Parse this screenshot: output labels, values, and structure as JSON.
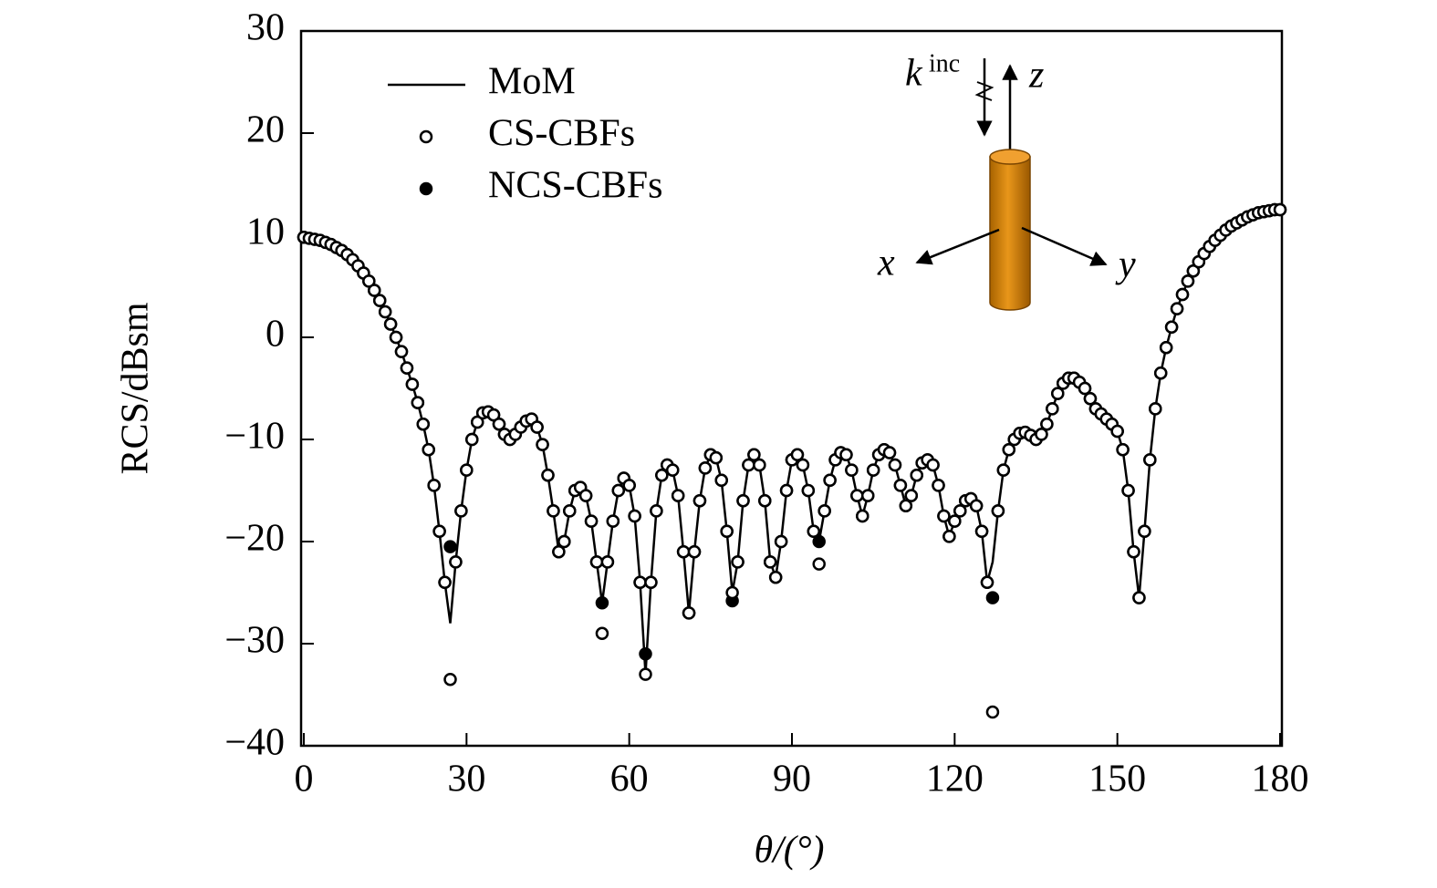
{
  "chart_data": {
    "type": "line",
    "xlabel": "θ/(°)",
    "ylabel": "RCS/dBsm",
    "xlim": [
      0,
      180
    ],
    "xticks": [
      0,
      30,
      60,
      90,
      120,
      150,
      180
    ],
    "ylim": [
      -40,
      30
    ],
    "yticks": [
      {
        "value": -40,
        "label": "−40"
      },
      {
        "value": -30,
        "label": "−30"
      },
      {
        "value": -20,
        "label": "−20"
      },
      {
        "value": -10,
        "label": "−10"
      },
      0,
      10,
      20,
      30
    ],
    "legend": "upper left",
    "annotations": [
      "k",
      "inc",
      "z",
      "x",
      "y"
    ],
    "x": [
      0,
      1,
      2,
      3,
      4,
      5,
      6,
      7,
      8,
      9,
      10,
      11,
      12,
      13,
      14,
      15,
      16,
      17,
      18,
      19,
      20,
      21,
      22,
      23,
      24,
      25,
      26,
      27,
      28,
      29,
      30,
      31,
      32,
      33,
      34,
      35,
      36,
      37,
      38,
      39,
      40,
      41,
      42,
      43,
      44,
      45,
      46,
      47,
      48,
      49,
      50,
      51,
      52,
      53,
      54,
      55,
      56,
      57,
      58,
      59,
      60,
      61,
      62,
      63,
      64,
      65,
      66,
      67,
      68,
      69,
      70,
      71,
      72,
      73,
      74,
      75,
      76,
      77,
      78,
      79,
      80,
      81,
      82,
      83,
      84,
      85,
      86,
      87,
      88,
      89,
      90,
      91,
      92,
      93,
      94,
      95,
      96,
      97,
      98,
      99,
      100,
      101,
      102,
      103,
      104,
      105,
      106,
      107,
      108,
      109,
      110,
      111,
      112,
      113,
      114,
      115,
      116,
      117,
      118,
      119,
      120,
      121,
      122,
      123,
      124,
      125,
      126,
      127,
      128,
      129,
      130,
      131,
      132,
      133,
      134,
      135,
      136,
      137,
      138,
      139,
      140,
      141,
      142,
      143,
      144,
      145,
      146,
      147,
      148,
      149,
      150,
      151,
      152,
      153,
      154,
      155,
      156,
      157,
      158,
      159,
      160,
      161,
      162,
      163,
      164,
      165,
      166,
      167,
      168,
      169,
      170,
      171,
      172,
      173,
      174,
      175,
      176,
      177,
      178,
      179,
      180
    ],
    "series": [
      {
        "name": "MoM",
        "color": "#000000",
        "marker": "line",
        "values": [
          9.8,
          9.7,
          9.6,
          9.5,
          9.3,
          9.1,
          8.8,
          8.5,
          8.1,
          7.6,
          7.0,
          6.3,
          5.5,
          4.6,
          3.6,
          2.5,
          1.3,
          0,
          -1.4,
          -3,
          -4.6,
          -6.4,
          -8.5,
          -11,
          -14.5,
          -19,
          -24,
          -28,
          -22,
          -17,
          -13,
          -10,
          -8.3,
          -7.4,
          -7.3,
          -7.6,
          -8.5,
          -9.5,
          -10,
          -9.5,
          -8.8,
          -8.2,
          -8,
          -8.8,
          -10.5,
          -13.5,
          -17,
          -21,
          -20,
          -17,
          -15,
          -14.7,
          -15.5,
          -18,
          -22,
          -26,
          -22,
          -18,
          -15,
          -13.8,
          -14.5,
          -17.5,
          -24,
          -33,
          -24,
          -17,
          -13.5,
          -12.5,
          -13,
          -15.5,
          -21,
          -27,
          -21,
          -16,
          -12.8,
          -11.5,
          -11.8,
          -14,
          -19,
          -25,
          -22,
          -16,
          -12.5,
          -11.5,
          -12.5,
          -16,
          -22,
          -23.5,
          -20,
          -15,
          -12,
          -11.5,
          -12.5,
          -15,
          -19,
          -20,
          -17,
          -14,
          -12,
          -11.3,
          -11.5,
          -13,
          -15.5,
          -17.5,
          -15.5,
          -13,
          -11.5,
          -11,
          -11.3,
          -12.5,
          -14.5,
          -16.5,
          -15.5,
          -13.5,
          -12.3,
          -12,
          -12.5,
          -14.5,
          -17.5,
          -19.5,
          -18,
          -17,
          -16,
          -15.8,
          -16.5,
          -19,
          -24,
          -22,
          -17,
          -13,
          -11,
          -10,
          -9.4,
          -9.3,
          -9.6,
          -10,
          -9.5,
          -8.5,
          -7,
          -5.5,
          -4.5,
          -4,
          -4,
          -4.4,
          -5,
          -6,
          -7,
          -7.5,
          -8,
          -8.5,
          -9.2,
          -11,
          -15,
          -21,
          -25.5,
          -19,
          -12,
          -7,
          -3.5,
          -1,
          1,
          2.8,
          4.2,
          5.5,
          6.5,
          7.4,
          8.2,
          8.9,
          9.5,
          10,
          10.5,
          10.9,
          11.2,
          11.5,
          11.8,
          12,
          12.2,
          12.3,
          12.4,
          12.5,
          12.5
        ]
      },
      {
        "name": "NCS-CBFs",
        "color": "#000000",
        "marker": "filled",
        "values": [
          9.8,
          9.7,
          9.6,
          9.5,
          9.3,
          9.1,
          8.8,
          8.5,
          8.1,
          7.6,
          7.0,
          6.3,
          5.5,
          4.6,
          3.6,
          2.5,
          1.3,
          0,
          -1.4,
          -3,
          -4.6,
          -6.4,
          -8.5,
          -11,
          -14.5,
          -19,
          -24,
          -20.5,
          -22,
          -17,
          -13,
          -10,
          -8.3,
          -7.4,
          -7.3,
          -7.6,
          -8.5,
          -9.5,
          -10,
          -9.5,
          -8.8,
          -8.2,
          -8,
          -8.8,
          -10.5,
          -13.5,
          -17,
          -21,
          -20,
          -17,
          -15,
          -14.7,
          -15.5,
          -18,
          -22,
          -26,
          -22,
          -18,
          -15,
          -13.8,
          -14.5,
          -17.5,
          -24,
          -31,
          -24,
          -17,
          -13.5,
          -12.5,
          -13,
          -15.5,
          -21,
          -27,
          -21,
          -16,
          -12.8,
          -11.5,
          -11.8,
          -14,
          -19,
          -25.8,
          -22,
          -16,
          -12.5,
          -11.5,
          -12.5,
          -16,
          -22,
          -23.5,
          -20,
          -15,
          -12,
          -11.5,
          -12.5,
          -15,
          -19,
          -20,
          -17,
          -14,
          -12,
          -11.3,
          -11.5,
          -13,
          -15.5,
          -17.5,
          -15.5,
          -13,
          -11.5,
          -11,
          -11.3,
          -12.5,
          -14.5,
          -16.5,
          -15.5,
          -13.5,
          -12.3,
          -12,
          -12.5,
          -14.5,
          -17.5,
          -19.5,
          -18,
          -17,
          -16,
          -15.8,
          -16.5,
          -19,
          -24,
          -25.5,
          -17,
          -13,
          -11,
          -10,
          -9.4,
          -9.3,
          -9.6,
          -10,
          -9.5,
          -8.5,
          -7,
          -5.5,
          -4.5,
          -4,
          -4,
          -4.4,
          -5,
          -6,
          -7,
          -7.5,
          -8,
          -8.5,
          -9.2,
          -11,
          -15,
          -21,
          -25.5,
          -19,
          -12,
          -7,
          -3.5,
          -1,
          1,
          2.8,
          4.2,
          5.5,
          6.5,
          7.4,
          8.2,
          8.9,
          9.5,
          10,
          10.5,
          10.9,
          11.2,
          11.5,
          11.8,
          12,
          12.2,
          12.3,
          12.4,
          12.5,
          12.5
        ]
      },
      {
        "name": "CS-CBFs",
        "color": "#000000",
        "marker": "open",
        "values": [
          9.8,
          9.7,
          9.6,
          9.5,
          9.3,
          9.1,
          8.8,
          8.5,
          8.1,
          7.6,
          7.0,
          6.3,
          5.5,
          4.6,
          3.6,
          2.5,
          1.3,
          0,
          -1.4,
          -3,
          -4.6,
          -6.4,
          -8.5,
          -11,
          -14.5,
          -19,
          -24,
          -33.5,
          -22,
          -17,
          -13,
          -10,
          -8.3,
          -7.4,
          -7.3,
          -7.6,
          -8.5,
          -9.5,
          -10,
          -9.5,
          -8.8,
          -8.2,
          -8,
          -8.8,
          -10.5,
          -13.5,
          -17,
          -21,
          -20,
          -17,
          -15,
          -14.7,
          -15.5,
          -18,
          -22,
          -29,
          -22,
          -18,
          -15,
          -13.8,
          -14.5,
          -17.5,
          -24,
          -33,
          -24,
          -17,
          -13.5,
          -12.5,
          -13,
          -15.5,
          -21,
          -27,
          -21,
          -16,
          -12.8,
          -11.5,
          -11.8,
          -14,
          -19,
          -25,
          -22,
          -16,
          -12.5,
          -11.5,
          -12.5,
          -16,
          -22,
          -23.5,
          -20,
          -15,
          -12,
          -11.5,
          -12.5,
          -15,
          -19,
          -22.2,
          -17,
          -14,
          -12,
          -11.3,
          -11.5,
          -13,
          -15.5,
          -17.5,
          -15.5,
          -13,
          -11.5,
          -11,
          -11.3,
          -12.5,
          -14.5,
          -16.5,
          -15.5,
          -13.5,
          -12.3,
          -12,
          -12.5,
          -14.5,
          -17.5,
          -19.5,
          -18,
          -17,
          -16,
          -15.8,
          -16.5,
          -19,
          -24,
          -36.7,
          -17,
          -13,
          -11,
          -10,
          -9.4,
          -9.3,
          -9.6,
          -10,
          -9.5,
          -8.5,
          -7,
          -5.5,
          -4.5,
          -4,
          -4,
          -4.4,
          -5,
          -6,
          -7,
          -7.5,
          -8,
          -8.5,
          -9.2,
          -11,
          -15,
          -21,
          -25.5,
          -19,
          -12,
          -7,
          -3.5,
          -1,
          1,
          2.8,
          4.2,
          5.5,
          6.5,
          7.4,
          8.2,
          8.9,
          9.5,
          10,
          10.5,
          10.9,
          11.2,
          11.5,
          11.8,
          12,
          12.2,
          12.3,
          12.4,
          12.5,
          12.5
        ]
      }
    ]
  }
}
